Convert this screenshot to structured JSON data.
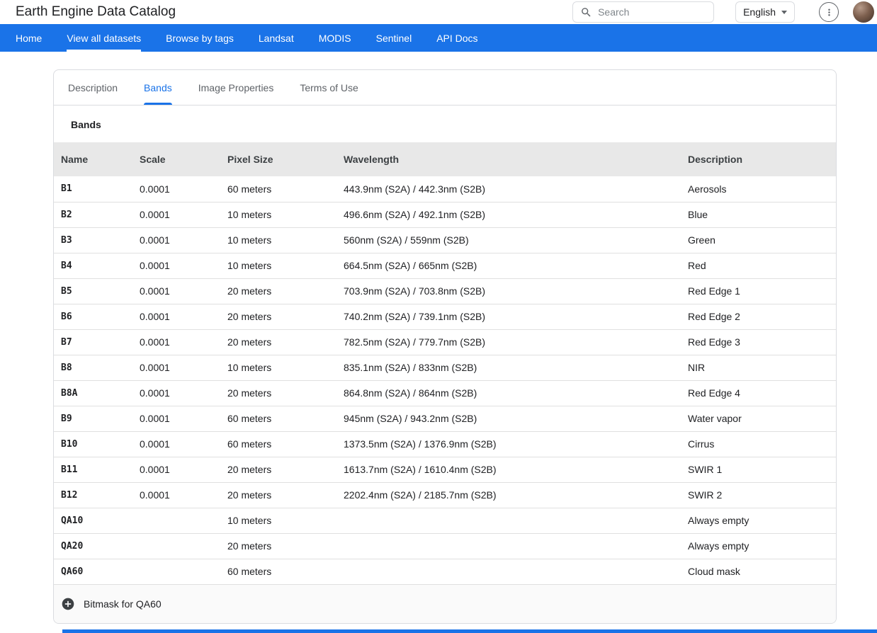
{
  "header": {
    "title": "Earth Engine Data Catalog",
    "search_placeholder": "Search",
    "language": "English"
  },
  "nav": {
    "items": [
      {
        "label": "Home",
        "active": false
      },
      {
        "label": "View all datasets",
        "active": true
      },
      {
        "label": "Browse by tags",
        "active": false
      },
      {
        "label": "Landsat",
        "active": false
      },
      {
        "label": "MODIS",
        "active": false
      },
      {
        "label": "Sentinel",
        "active": false
      },
      {
        "label": "API Docs",
        "active": false
      }
    ]
  },
  "tabs": [
    {
      "label": "Description",
      "active": false
    },
    {
      "label": "Bands",
      "active": true
    },
    {
      "label": "Image Properties",
      "active": false
    },
    {
      "label": "Terms of Use",
      "active": false
    }
  ],
  "section_title": "Bands",
  "table": {
    "columns": [
      "Name",
      "Scale",
      "Pixel Size",
      "Wavelength",
      "Description"
    ],
    "column_keys": [
      "name",
      "scale",
      "pixel-size",
      "wavelength",
      "description"
    ],
    "rows": [
      [
        "B1",
        "0.0001",
        "60 meters",
        "443.9nm (S2A) / 442.3nm (S2B)",
        "Aerosols"
      ],
      [
        "B2",
        "0.0001",
        "10 meters",
        "496.6nm (S2A) / 492.1nm (S2B)",
        "Blue"
      ],
      [
        "B3",
        "0.0001",
        "10 meters",
        "560nm (S2A) / 559nm (S2B)",
        "Green"
      ],
      [
        "B4",
        "0.0001",
        "10 meters",
        "664.5nm (S2A) / 665nm (S2B)",
        "Red"
      ],
      [
        "B5",
        "0.0001",
        "20 meters",
        "703.9nm (S2A) / 703.8nm (S2B)",
        "Red Edge 1"
      ],
      [
        "B6",
        "0.0001",
        "20 meters",
        "740.2nm (S2A) / 739.1nm (S2B)",
        "Red Edge 2"
      ],
      [
        "B7",
        "0.0001",
        "20 meters",
        "782.5nm (S2A) / 779.7nm (S2B)",
        "Red Edge 3"
      ],
      [
        "B8",
        "0.0001",
        "10 meters",
        "835.1nm (S2A) / 833nm (S2B)",
        "NIR"
      ],
      [
        "B8A",
        "0.0001",
        "20 meters",
        "864.8nm (S2A) / 864nm (S2B)",
        "Red Edge 4"
      ],
      [
        "B9",
        "0.0001",
        "60 meters",
        "945nm (S2A) / 943.2nm (S2B)",
        "Water vapor"
      ],
      [
        "B10",
        "0.0001",
        "60 meters",
        "1373.5nm (S2A) / 1376.9nm (S2B)",
        "Cirrus"
      ],
      [
        "B11",
        "0.0001",
        "20 meters",
        "1613.7nm (S2A) / 1610.4nm (S2B)",
        "SWIR 1"
      ],
      [
        "B12",
        "0.0001",
        "20 meters",
        "2202.4nm (S2A) / 2185.7nm (S2B)",
        "SWIR 2"
      ],
      [
        "QA10",
        "",
        "10 meters",
        "",
        "Always empty"
      ],
      [
        "QA20",
        "",
        "20 meters",
        "",
        "Always empty"
      ],
      [
        "QA60",
        "",
        "60 meters",
        "",
        "Cloud mask"
      ]
    ]
  },
  "bitmask": {
    "label": "Bitmask for QA60"
  },
  "colors": {
    "accent": "#1a73e8",
    "table_header_bg": "#e8e8e8",
    "row_border": "#e0e0e0",
    "bitmask_bg": "#fafafa"
  }
}
